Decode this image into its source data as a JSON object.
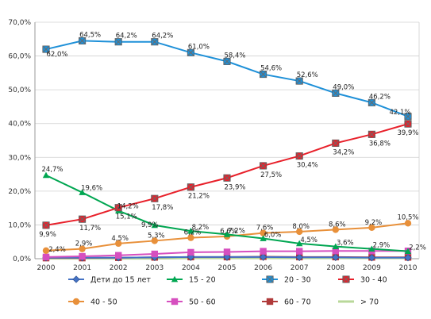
{
  "chart_data": {
    "type": "line",
    "x": [
      "2000",
      "2001",
      "2002",
      "2003",
      "2004",
      "2005",
      "2006",
      "2007",
      "2008",
      "2009",
      "2010"
    ],
    "y_ticks": [
      "0,0%",
      "10,0%",
      "20,0%",
      "30,0%",
      "40,0%",
      "50,0%",
      "60,0%",
      "70,0%"
    ],
    "ylim": [
      0,
      70
    ],
    "grid": true,
    "legend_position": "bottom",
    "series": [
      {
        "name": "Дети до 15 лет",
        "color": "#4472c4",
        "marker": "diamond",
        "values": [
          0.3,
          0.3,
          0.3,
          0.4,
          0.5,
          0.5,
          0.5,
          0.4,
          0.4,
          0.3,
          0.3
        ],
        "labels": []
      },
      {
        "name": "15 - 20",
        "color": "#00a651",
        "marker": "triangle",
        "values": [
          24.7,
          19.6,
          14.2,
          9.9,
          8.2,
          7.2,
          6.0,
          4.5,
          3.6,
          2.9,
          2.2
        ],
        "labels": [
          "24,7%",
          "19,6%",
          "14,2%",
          "9,9%",
          "8,2%",
          "7,2%",
          "6,0%",
          "4,5%",
          "3,6%",
          "2,9%",
          "2,2%"
        ]
      },
      {
        "name": "20 - 30",
        "color": "#1e90d8",
        "marker": "xsquare",
        "values": [
          62.0,
          64.5,
          64.2,
          64.2,
          61.0,
          58.4,
          54.6,
          52.6,
          49.0,
          46.2,
          42.1
        ],
        "labels": [
          "62,0%",
          "64,5%",
          "64,2%",
          "64,2%",
          "61,0%",
          "58,4%",
          "54,6%",
          "52,6%",
          "49,0%",
          "46,2%",
          "42,1%"
        ]
      },
      {
        "name": "30 - 40",
        "color": "#e8202a",
        "marker": "xsquare",
        "values": [
          9.9,
          11.7,
          15.1,
          17.8,
          21.2,
          23.9,
          27.5,
          30.4,
          34.2,
          36.8,
          39.9
        ],
        "labels": [
          "9,9%",
          "11,7%",
          "15,1%",
          "17,8%",
          "21,2%",
          "23,9%",
          "27,5%",
          "30,4%",
          "34,2%",
          "36,8%",
          "39,9%"
        ]
      },
      {
        "name": "40 - 50",
        "color": "#e8903a",
        "marker": "circle",
        "values": [
          2.4,
          2.9,
          4.5,
          5.3,
          6.2,
          6.6,
          7.6,
          8.0,
          8.6,
          9.2,
          10.5
        ],
        "labels": [
          "2,4%",
          "2,9%",
          "4,5%",
          "5,3%",
          "6,2%",
          "6,6%",
          "7,6%",
          "8,0%",
          "8,6%",
          "9,2%",
          "10,5%"
        ]
      },
      {
        "name": "50 - 60",
        "color": "#d64fbf",
        "marker": "square",
        "values": [
          0.5,
          0.7,
          1.0,
          1.4,
          1.9,
          2.0,
          2.2,
          2.2,
          2.3,
          2.3,
          2.3
        ],
        "labels": []
      },
      {
        "name": "60 - 70",
        "color": "#b03a3a",
        "marker": "square",
        "values": [
          0.2,
          0.2,
          0.3,
          0.4,
          0.5,
          0.5,
          0.6,
          0.5,
          0.5,
          0.4,
          0.4
        ],
        "labels": []
      },
      {
        "name": "> 70",
        "color": "#b9d89a",
        "marker": "none",
        "values": [
          0.1,
          0.1,
          0.1,
          0.1,
          0.2,
          0.2,
          0.2,
          0.2,
          0.2,
          0.2,
          0.2
        ],
        "labels": []
      }
    ]
  }
}
